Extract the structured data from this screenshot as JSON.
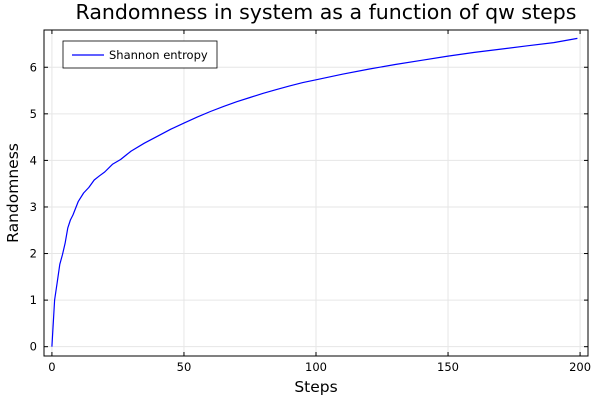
{
  "chart_data": {
    "type": "line",
    "title": "Randomness in system as a function of qw steps",
    "xlabel": "Steps",
    "ylabel": "Randomness",
    "xlim": [
      -3,
      203
    ],
    "ylim": [
      -0.2,
      6.8
    ],
    "xticks": [
      0,
      50,
      100,
      150,
      200
    ],
    "xtick_labels": [
      "0",
      "50",
      "100",
      "150",
      "200"
    ],
    "yticks": [
      0,
      1,
      2,
      3,
      4,
      5,
      6
    ],
    "ytick_labels": [
      "0",
      "1",
      "2",
      "3",
      "4",
      "5",
      "6"
    ],
    "grid": true,
    "legend_position": "top-left",
    "series": [
      {
        "name": "Shannon entropy",
        "color": "#0000ff",
        "x": [
          0,
          1,
          2,
          3,
          4,
          5,
          6,
          7,
          8,
          10,
          12,
          14,
          16,
          18,
          20,
          23,
          26,
          30,
          35,
          40,
          45,
          50,
          55,
          60,
          65,
          70,
          75,
          80,
          85,
          90,
          95,
          100,
          110,
          120,
          130,
          140,
          150,
          160,
          170,
          180,
          190,
          199
        ],
        "y": [
          0.0,
          1.0,
          1.38,
          1.77,
          1.98,
          2.22,
          2.55,
          2.72,
          2.83,
          3.12,
          3.3,
          3.42,
          3.58,
          3.67,
          3.75,
          3.92,
          4.02,
          4.2,
          4.37,
          4.52,
          4.67,
          4.8,
          4.93,
          5.05,
          5.16,
          5.26,
          5.35,
          5.44,
          5.52,
          5.6,
          5.67,
          5.73,
          5.85,
          5.96,
          6.06,
          6.15,
          6.24,
          6.32,
          6.39,
          6.46,
          6.53,
          6.62
        ]
      }
    ]
  }
}
